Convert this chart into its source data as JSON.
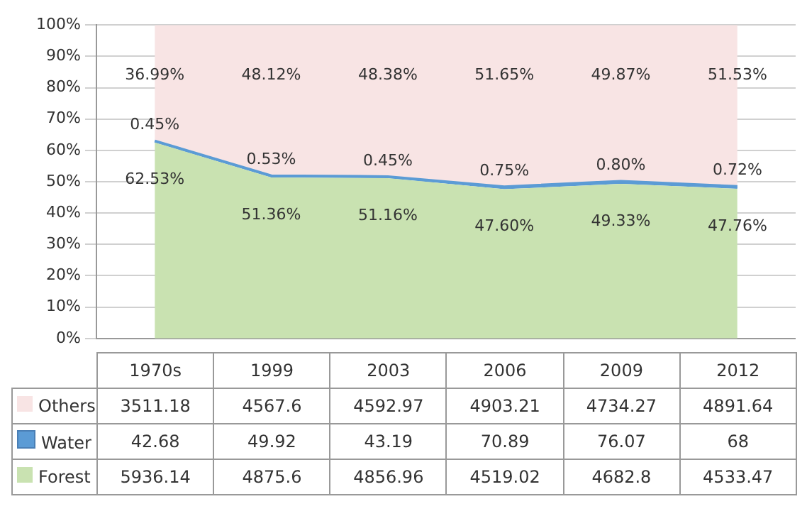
{
  "chart_data": {
    "type": "area",
    "stacked": true,
    "categories": [
      "1970s",
      "1999",
      "2003",
      "2006",
      "2009",
      "2012"
    ],
    "series": [
      {
        "name": "Forest",
        "color": "#c9e2b1",
        "values": [
          62.53,
          51.36,
          51.16,
          47.6,
          49.33,
          47.76
        ],
        "value_labels": [
          "62.53%",
          "51.36%",
          "51.16%",
          "47.60%",
          "49.33%",
          "47.76%"
        ]
      },
      {
        "name": "Water",
        "color": "#5b9bd5",
        "values": [
          0.45,
          0.53,
          0.45,
          0.75,
          0.8,
          0.72
        ],
        "value_labels": [
          "0.45%",
          "0.53%",
          "0.45%",
          "0.75%",
          "0.80%",
          "0.72%"
        ]
      },
      {
        "name": "Others",
        "color": "#f8e4e4",
        "values": [
          36.99,
          48.12,
          48.38,
          51.65,
          49.87,
          51.53
        ],
        "value_labels": [
          "36.99%",
          "48.12%",
          "48.38%",
          "51.65%",
          "49.87%",
          "51.53%"
        ]
      }
    ],
    "ylim": [
      0,
      100
    ],
    "yticks": [
      {
        "value": 0,
        "label": "0%"
      },
      {
        "value": 10,
        "label": "10%"
      },
      {
        "value": 20,
        "label": "20%"
      },
      {
        "value": 30,
        "label": "30%"
      },
      {
        "value": 40,
        "label": "40%"
      },
      {
        "value": 50,
        "label": "50%"
      },
      {
        "value": 60,
        "label": "60%"
      },
      {
        "value": 70,
        "label": "70%"
      },
      {
        "value": 80,
        "label": "80%"
      },
      {
        "value": 90,
        "label": "90%"
      },
      {
        "value": 100,
        "label": "100%"
      }
    ],
    "grid": "y",
    "legend": "bottom",
    "tick_labels": "y",
    "annotations": [
      "3511.18",
      "4567.6",
      "4592.97",
      "4903.21",
      "4734.27",
      "4891.64",
      "42.68",
      "49.92",
      "43.19",
      "70.89",
      "76.07",
      "68",
      "5936.14",
      "4875.6",
      "4856.96",
      "4519.02",
      "4682.8",
      "4533.47"
    ]
  }
}
